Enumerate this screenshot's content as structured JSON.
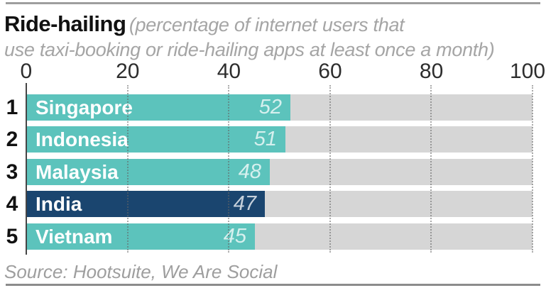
{
  "header": {
    "title": "Ride-hailing",
    "subtitle_line1": "(percentage of internet users that",
    "subtitle_line2": "use taxi-booking or ride-hailing apps at least once a month)"
  },
  "chart_data": {
    "type": "bar",
    "orientation": "horizontal",
    "title": "Ride-hailing",
    "subtitle": "(percentage of internet users that use taxi-booking or ride-hailing apps at least once a month)",
    "categories": [
      "Singapore",
      "Indonesia",
      "Malaysia",
      "India",
      "Vietnam"
    ],
    "values": [
      52,
      51,
      48,
      47,
      45
    ],
    "ranks": [
      "1",
      "2",
      "3",
      "4",
      "5"
    ],
    "highlight_category": "India",
    "xlim": [
      0,
      100
    ],
    "x_ticks": [
      "0",
      "20",
      "40",
      "60",
      "80",
      "100"
    ],
    "grid": "dotted-vertical",
    "legend": "none",
    "colors": {
      "bar": "#5cc3bc",
      "highlight_bar": "#1a456f",
      "track": "#d6d6d6",
      "grid": "#646464",
      "axis": "#454545"
    }
  },
  "footer": {
    "source": "Source: Hootsuite, We Are Social"
  }
}
